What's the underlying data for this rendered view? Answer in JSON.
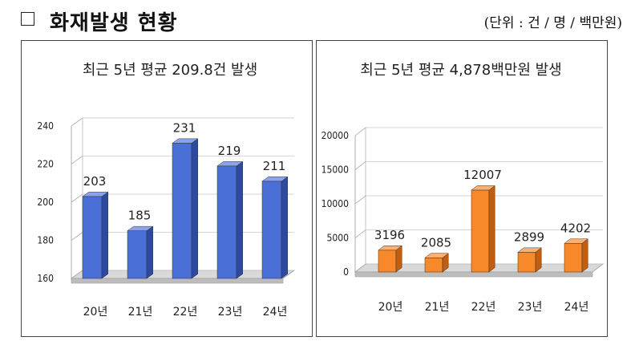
{
  "header": {
    "title": "화재발생 현황",
    "unit_note": "(단위 : 건 / 명 / 백만원)"
  },
  "chart_data": [
    {
      "type": "bar",
      "title": "최근 5년 평균 209.8건 발생",
      "categories": [
        "20년",
        "21년",
        "22년",
        "23년",
        "24년"
      ],
      "values": [
        203,
        185,
        231,
        219,
        211
      ],
      "yticks": [
        160,
        180,
        200,
        220,
        240
      ],
      "ylim": [
        160,
        240
      ],
      "grid": true,
      "colors": {
        "front": "#4a6fd6",
        "side": "#2c4a9e",
        "top": "#8aa3ea"
      }
    },
    {
      "type": "bar",
      "title": "최근 5년 평균 4,878백만원 발생",
      "categories": [
        "20년",
        "21년",
        "22년",
        "23년",
        "24년"
      ],
      "values": [
        3196,
        2085,
        12007,
        2899,
        4202
      ],
      "yticks": [
        0,
        5000,
        10000,
        15000,
        20000
      ],
      "ylim": [
        0,
        20000
      ],
      "grid": true,
      "colors": {
        "front": "#f7892b",
        "side": "#c25e10",
        "top": "#fab072"
      }
    }
  ]
}
